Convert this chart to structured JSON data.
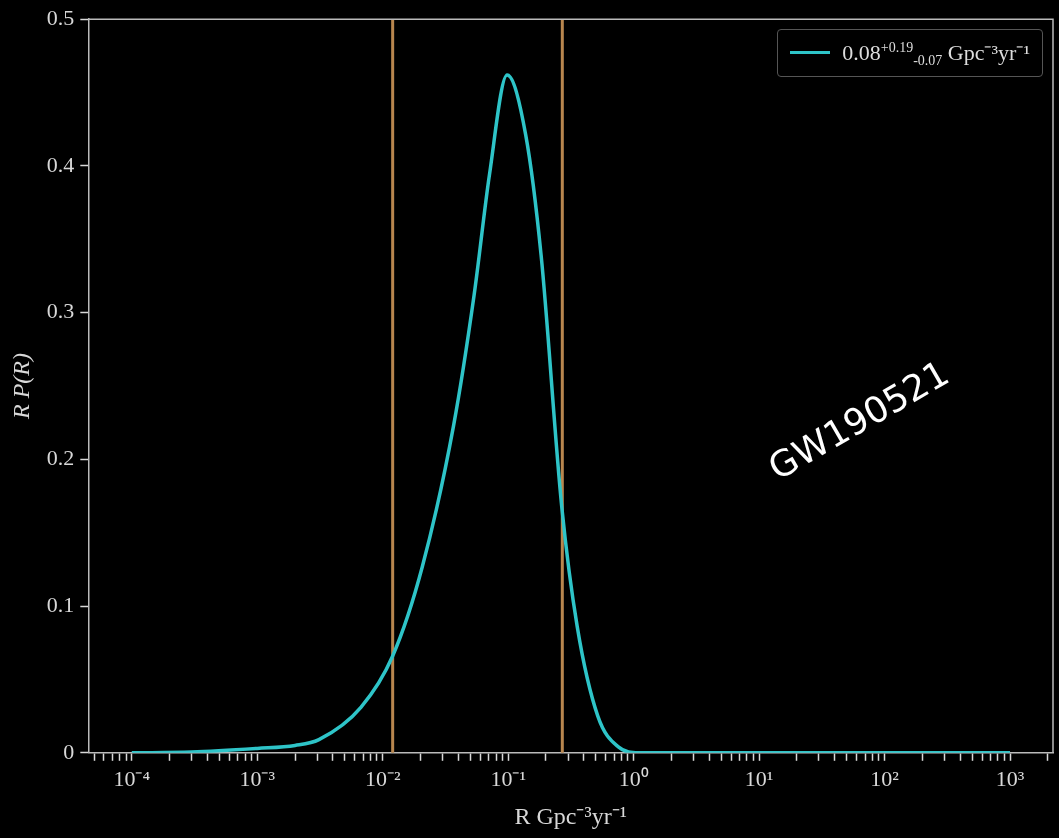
{
  "chart_data": {
    "type": "line",
    "xlabel": "R Gpc⁻³yr⁻¹",
    "ylabel": "R P(R)",
    "log": "x",
    "legend": "top right",
    "marker": "none",
    "grid": false,
    "annotations": [
      "GW190521"
    ],
    "xlim": [
      4.5e-05,
      2200
    ],
    "ylim": [
      0,
      0.5
    ],
    "yticks": [
      0.0,
      0.1,
      0.2,
      0.3,
      0.4,
      0.5
    ],
    "xticks": [
      {
        "value": 5e-05,
        "label": null
      },
      {
        "value": 6e-05,
        "label": null
      },
      {
        "value": 7e-05,
        "label": null
      },
      {
        "value": 8e-05,
        "label": null
      },
      {
        "value": 9e-05,
        "label": null
      },
      {
        "value": 0.0001,
        "label": "10⁻⁴"
      },
      {
        "value": 0.0002,
        "label": null
      },
      {
        "value": 0.0003,
        "label": null
      },
      {
        "value": 0.0004,
        "label": null
      },
      {
        "value": 0.0005,
        "label": null
      },
      {
        "value": 0.0006,
        "label": null
      },
      {
        "value": 0.0007,
        "label": null
      },
      {
        "value": 0.0008,
        "label": null
      },
      {
        "value": 0.0009,
        "label": null
      },
      {
        "value": 0.001,
        "label": "10⁻³"
      },
      {
        "value": 0.002,
        "label": null
      },
      {
        "value": 0.003,
        "label": null
      },
      {
        "value": 0.004,
        "label": null
      },
      {
        "value": 0.005,
        "label": null
      },
      {
        "value": 0.006,
        "label": null
      },
      {
        "value": 0.007,
        "label": null
      },
      {
        "value": 0.008,
        "label": null
      },
      {
        "value": 0.009,
        "label": null
      },
      {
        "value": 0.01,
        "label": "10⁻²"
      },
      {
        "value": 0.02,
        "label": null
      },
      {
        "value": 0.03,
        "label": null
      },
      {
        "value": 0.04,
        "label": null
      },
      {
        "value": 0.05,
        "label": null
      },
      {
        "value": 0.06,
        "label": null
      },
      {
        "value": 0.07,
        "label": null
      },
      {
        "value": 0.08,
        "label": null
      },
      {
        "value": 0.09,
        "label": null
      },
      {
        "value": 0.1,
        "label": "10⁻¹"
      },
      {
        "value": 0.2,
        "label": null
      },
      {
        "value": 0.3,
        "label": null
      },
      {
        "value": 0.4,
        "label": null
      },
      {
        "value": 0.5,
        "label": null
      },
      {
        "value": 0.6,
        "label": null
      },
      {
        "value": 0.7,
        "label": null
      },
      {
        "value": 0.8,
        "label": null
      },
      {
        "value": 0.9,
        "label": null
      },
      {
        "value": 1,
        "label": "10⁰"
      },
      {
        "value": 2,
        "label": null
      },
      {
        "value": 3,
        "label": null
      },
      {
        "value": 4,
        "label": null
      },
      {
        "value": 5,
        "label": null
      },
      {
        "value": 6,
        "label": null
      },
      {
        "value": 7,
        "label": null
      },
      {
        "value": 8,
        "label": null
      },
      {
        "value": 9,
        "label": null
      },
      {
        "value": 10,
        "label": "10¹"
      },
      {
        "value": 20,
        "label": null
      },
      {
        "value": 30,
        "label": null
      },
      {
        "value": 40,
        "label": null
      },
      {
        "value": 50,
        "label": null
      },
      {
        "value": 60,
        "label": null
      },
      {
        "value": 70,
        "label": null
      },
      {
        "value": 80,
        "label": null
      },
      {
        "value": 90,
        "label": null
      },
      {
        "value": 100,
        "label": "10²"
      },
      {
        "value": 200,
        "label": null
      },
      {
        "value": 300,
        "label": null
      },
      {
        "value": 400,
        "label": null
      },
      {
        "value": 500,
        "label": null
      },
      {
        "value": 600,
        "label": null
      },
      {
        "value": 700,
        "label": null
      },
      {
        "value": 800,
        "label": null
      },
      {
        "value": 900,
        "label": null
      },
      {
        "value": 1000,
        "label": "10³"
      },
      {
        "value": 2000,
        "label": null
      }
    ],
    "ref_lines": [
      {
        "axis": "x",
        "value": 0.012,
        "color": "#b8864e"
      },
      {
        "axis": "x",
        "value": 0.27,
        "color": "#b8864e"
      }
    ],
    "series": [
      {
        "name": "0.08$^{+0.19}$$_{-0.07}$ Gpc⁻³yr⁻¹",
        "color": "#2ec4c8",
        "x": [
          0.0001,
          0.0003,
          0.001,
          0.002,
          0.0031,
          0.0067,
          0.012,
          0.0207,
          0.0367,
          0.0535,
          0.0709,
          0.098,
          0.138,
          0.183,
          0.267,
          0.355,
          0.518,
          0.755,
          1.1,
          3,
          1000
        ],
        "values": [
          0,
          0.0005,
          0.003,
          0.005,
          0.009,
          0.031,
          0.066,
          0.127,
          0.223,
          0.312,
          0.394,
          0.462,
          0.421,
          0.339,
          0.168,
          0.086,
          0.025,
          0.004,
          0,
          0,
          0
        ]
      }
    ]
  }
}
